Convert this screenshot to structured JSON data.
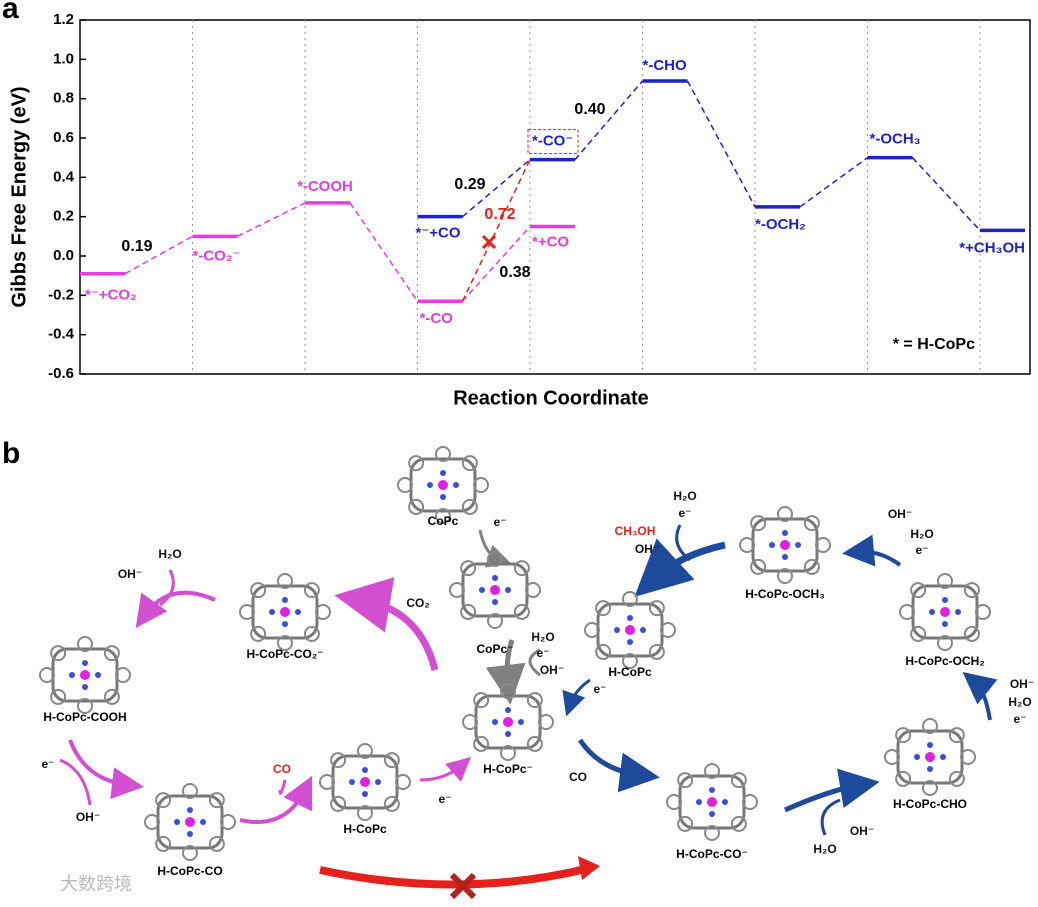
{
  "panel_a_label": "a",
  "chart_data": {
    "type": "energy-levels",
    "ylabel": "Gibbs Free Energy (eV)",
    "xlabel": "Reaction Coordinate",
    "ylim": [
      -0.6,
      1.2
    ],
    "yticks": [
      -0.6,
      -0.4,
      -0.2,
      {
        "value": 0,
        "label": "0.0"
      },
      0.2,
      0.4,
      0.6,
      0.8,
      {
        "value": 1,
        "label": "1.0"
      },
      1.2
    ],
    "series": [
      {
        "color": "#e83be8",
        "values": [
          -0.09,
          0.1,
          0.27,
          -0.23,
          0.15,
          null,
          null,
          null,
          null
        ],
        "level_labels": [
          "*⁻+CO₂",
          "*-CO₂⁻",
          "*-COOH",
          "*-CO",
          "*+CO",
          null,
          null,
          null,
          null
        ]
      },
      {
        "color": "#1f22c8",
        "values": [
          null,
          null,
          null,
          0.2,
          0.49,
          0.89,
          0.25,
          0.5,
          0.13
        ],
        "level_labels": [
          null,
          null,
          null,
          "*⁻+CO",
          "*-CO⁻",
          "*-CHO",
          "*-OCH₂",
          "*-OCH₃",
          "*+CH₃OH"
        ]
      }
    ],
    "crossed_color": "#e8201c",
    "annotations": [
      {
        "text": "0.19",
        "color": "#000000"
      },
      {
        "text": "0.29",
        "color": "#000000"
      },
      {
        "text": "0.40",
        "color": "#000000"
      },
      {
        "text": "0.38",
        "color": "#000000"
      },
      {
        "text": "0.72",
        "color": "#e8201c"
      },
      {
        "text": "* = H-CoPc",
        "color": "#000000"
      }
    ]
  },
  "diagram": {
    "panel_label": "b",
    "molecules": [
      "CoPc",
      "CoPc⁻",
      "H-CoPc⁻",
      "H-CoPc-CO₂⁻",
      "H-CoPc-COOH",
      "H-CoPc-CO",
      "H-CoPc",
      "H-CoPc-CO⁻",
      "H-CoPc-CHO",
      "H-CoPc-OCH₂",
      "H-CoPc-OCH₃",
      "H-CoPc"
    ],
    "reagents": [
      "e⁻",
      "H₂O",
      "e⁻",
      "OH⁻",
      "CO₂",
      "H₂O",
      "OH⁻",
      "e⁻",
      "OH⁻",
      "CO",
      "e⁻",
      "CO",
      "H₂O",
      "OH⁻",
      "OH⁻",
      "H₂O",
      "e⁻",
      "OH⁻",
      "H₂O",
      "e⁻",
      "H₂O",
      "e⁻",
      "CH₃OH",
      "OH⁻",
      "e⁻"
    ],
    "watermark": "大数跨境"
  }
}
